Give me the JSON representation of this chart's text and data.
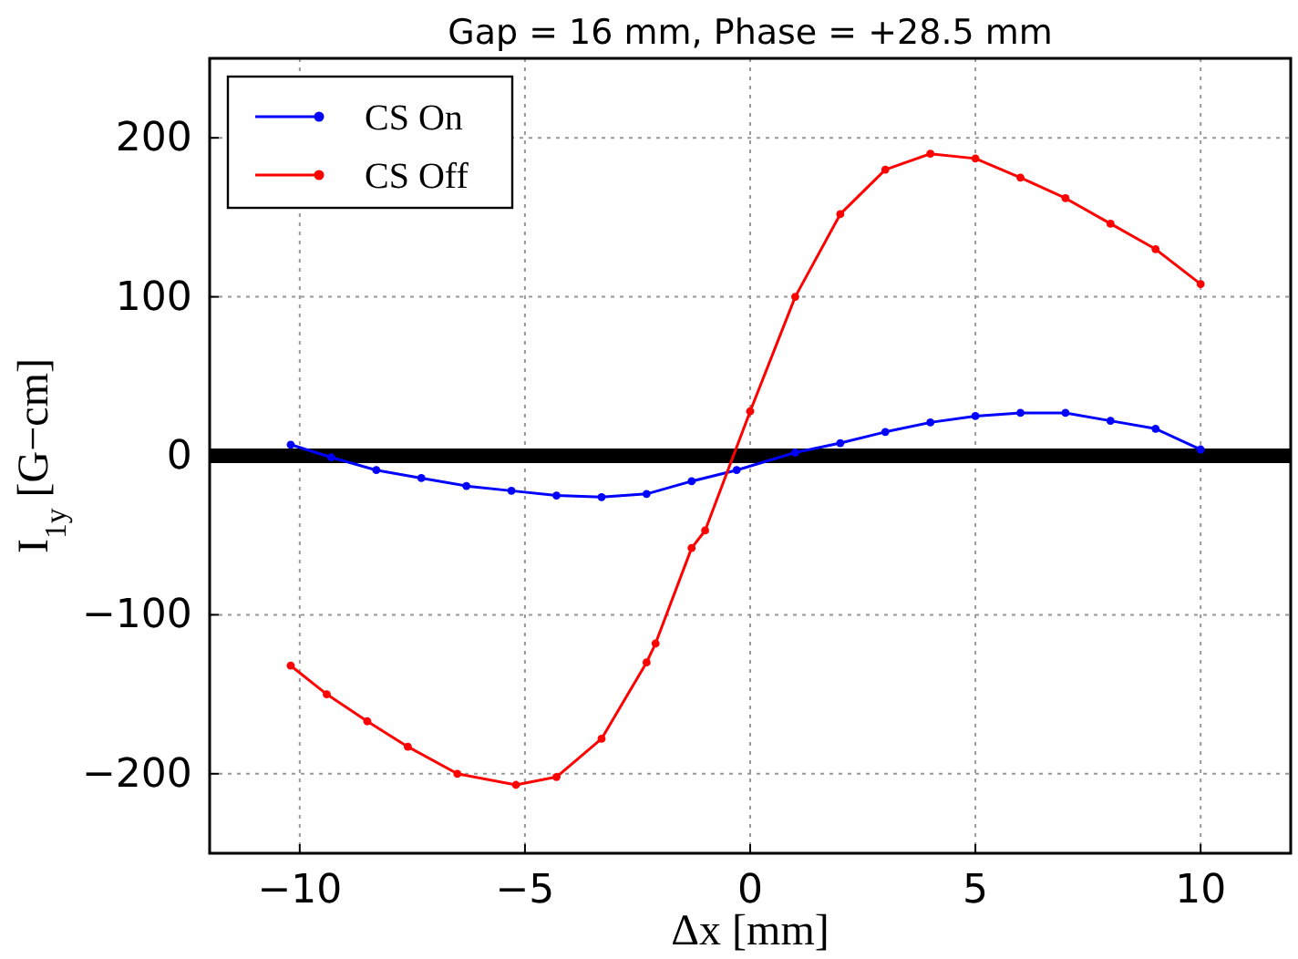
{
  "chart_data": {
    "type": "line",
    "title": "Gap = 16 mm, Phase = +28.5 mm",
    "xlabel": "Δx [mm]",
    "ylabel": "I$_{1y}$ [G−cm]",
    "xlim": [
      -12,
      12
    ],
    "xticks": [
      {
        "value": -10,
        "label": "−10"
      },
      {
        "value": -5,
        "label": "−5"
      },
      0,
      5,
      10
    ],
    "ylim": [
      -250,
      250
    ],
    "yticks": [
      {
        "value": -200,
        "label": "−200"
      },
      {
        "value": -100,
        "label": "−100"
      },
      0,
      100,
      200
    ],
    "grid": true,
    "legend": "top left",
    "marker": "circle",
    "line_style": "solid",
    "ref_lines": [
      {
        "axis": "y",
        "value": 0,
        "label": null,
        "color": "#000000"
      }
    ],
    "series": [
      {
        "name": "CS On",
        "color": "#0000ff",
        "x": [
          -10.2,
          -9.3,
          -8.3,
          -7.3,
          -6.3,
          -5.3,
          -4.3,
          -3.3,
          -2.3,
          -1.3,
          -0.3,
          1,
          2,
          3,
          4,
          5,
          6,
          7,
          8,
          9,
          10
        ],
        "values": [
          7,
          -1,
          -9,
          -14,
          -19,
          -22,
          -25,
          -26,
          -24,
          -16,
          -9,
          2,
          8,
          15,
          21,
          25,
          27,
          27,
          22,
          17,
          4
        ]
      },
      {
        "name": "CS Off",
        "color": "#ff0000",
        "x": [
          -10.2,
          -9.4,
          -8.5,
          -7.6,
          -6.5,
          -5.2,
          -4.3,
          -3.3,
          -2.3,
          -2.1,
          -1.3,
          -1,
          0,
          1,
          2,
          3,
          4,
          5,
          6,
          7,
          8,
          9,
          10
        ],
        "values": [
          -132,
          -150,
          -167,
          -183,
          -200,
          -207,
          -202,
          -178,
          -130,
          -118,
          -58,
          -47,
          28,
          100,
          152,
          180,
          190,
          187,
          175,
          162,
          146,
          130,
          108
        ]
      }
    ]
  }
}
